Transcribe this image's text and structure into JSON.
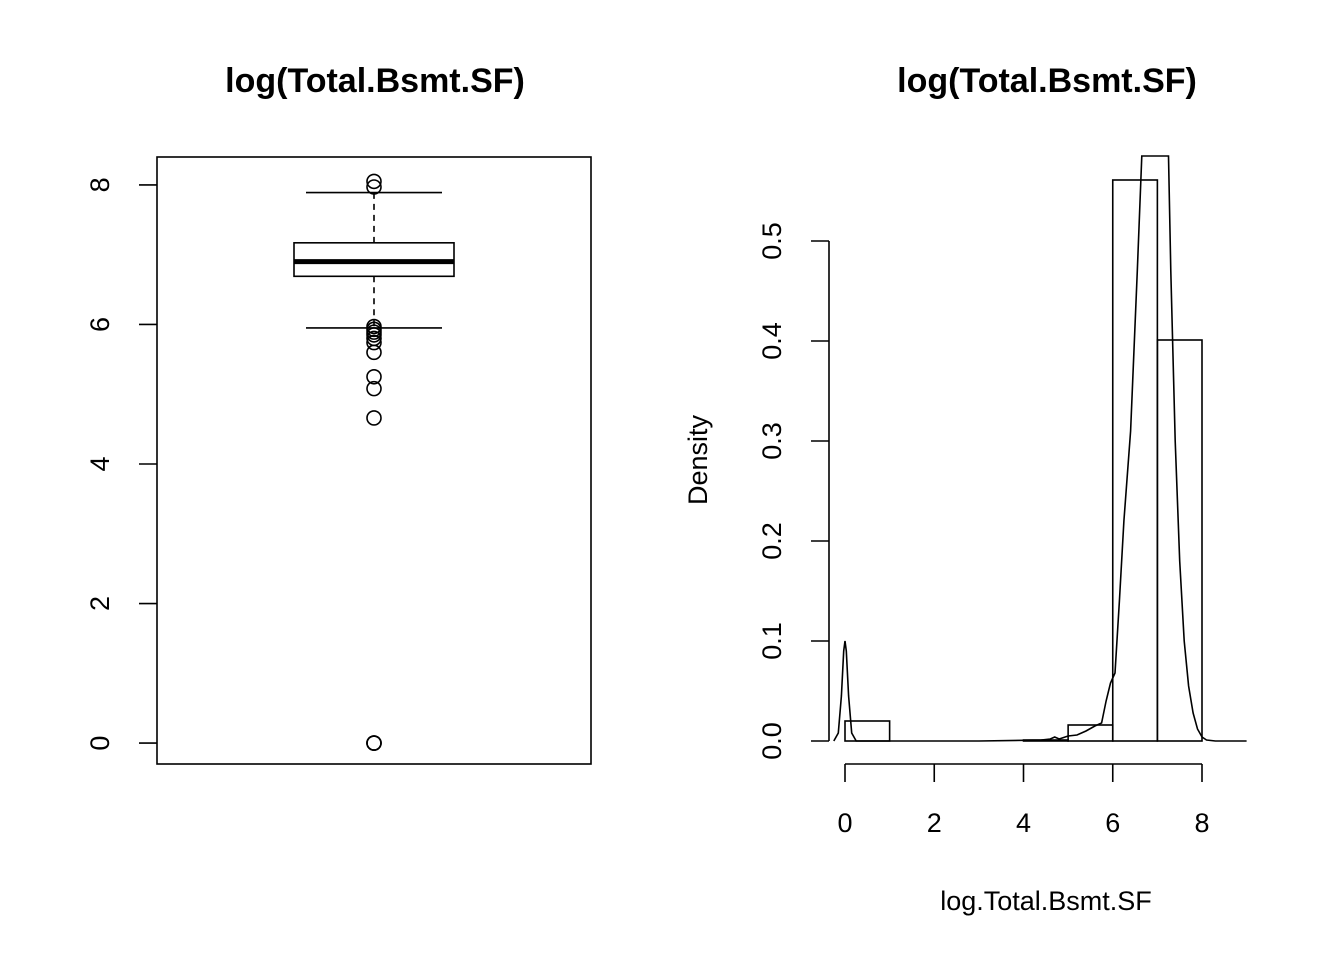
{
  "chart_data": [
    {
      "type": "boxplot",
      "title": "log(Total.Bsmt.SF)",
      "xlabel": "",
      "ylabel": "",
      "ylim": [
        -0.3,
        8.4
      ],
      "yticks": [
        "0",
        "2",
        "4",
        "6",
        "8"
      ],
      "box": {
        "lower_whisker": 5.95,
        "q1": 6.69,
        "median": 6.9,
        "q3": 7.17,
        "upper_whisker": 7.89
      },
      "outliers": [
        8.05,
        7.97,
        5.97,
        5.93,
        5.89,
        5.85,
        5.8,
        5.74,
        5.6,
        5.25,
        5.08,
        4.66,
        0,
        0,
        0
      ]
    },
    {
      "type": "histogram",
      "title": "log(Total.Bsmt.SF)",
      "xlabel": "log.Total.Bsmt.SF",
      "ylabel": "Density",
      "xlim": [
        -0.36,
        9.0
      ],
      "ylim": [
        0,
        0.585
      ],
      "xticks": [
        "0",
        "2",
        "4",
        "6",
        "8"
      ],
      "yticks": [
        "0.0",
        "0.1",
        "0.2",
        "0.3",
        "0.4",
        "0.5"
      ],
      "bins": [
        {
          "x0": 0,
          "x1": 1,
          "density": 0.02
        },
        {
          "x0": 1,
          "x1": 2,
          "density": 0.0
        },
        {
          "x0": 2,
          "x1": 3,
          "density": 0.0
        },
        {
          "x0": 3,
          "x1": 4,
          "density": 0.0
        },
        {
          "x0": 4,
          "x1": 5,
          "density": 0.001
        },
        {
          "x0": 5,
          "x1": 6,
          "density": 0.016
        },
        {
          "x0": 6,
          "x1": 7,
          "density": 0.561
        },
        {
          "x0": 7,
          "x1": 8,
          "density": 0.401
        }
      ],
      "density_curve": {
        "x": [
          -0.25,
          -0.15,
          -0.08,
          -0.03,
          0.0,
          0.03,
          0.08,
          0.15,
          0.25,
          0.4,
          1.0,
          3.0,
          4.4,
          4.6,
          4.7,
          4.8,
          5.0,
          5.2,
          5.4,
          5.6,
          5.75,
          5.85,
          5.95,
          6.05,
          6.15,
          6.25,
          6.4,
          6.55,
          6.65,
          6.7,
          7.15,
          7.25,
          7.3,
          7.4,
          7.5,
          7.6,
          7.7,
          7.8,
          7.9,
          8.0,
          8.1,
          8.3,
          8.6,
          9.0
        ],
        "y": [
          0.0,
          0.008,
          0.045,
          0.09,
          0.1,
          0.09,
          0.045,
          0.008,
          0.0,
          0.0,
          0.0,
          0.0,
          0.001,
          0.002,
          0.004,
          0.002,
          0.005,
          0.006,
          0.01,
          0.015,
          0.018,
          0.04,
          0.058,
          0.068,
          0.14,
          0.22,
          0.31,
          0.47,
          0.585,
          0.62,
          0.62,
          0.585,
          0.47,
          0.3,
          0.18,
          0.1,
          0.055,
          0.028,
          0.012,
          0.004,
          0.001,
          0.0,
          0.0,
          0.0
        ]
      }
    }
  ]
}
